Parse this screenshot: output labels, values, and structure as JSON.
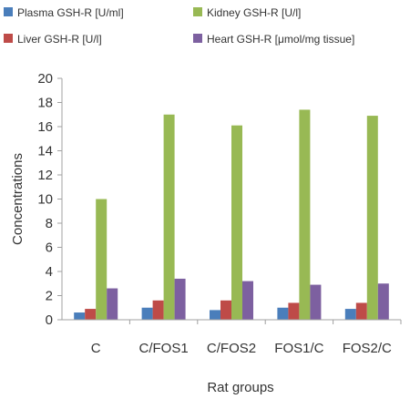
{
  "chart_data": {
    "type": "bar",
    "categories": [
      "C",
      "C/FOS1",
      "C/FOS2",
      "FOS1/C",
      "FOS2/C"
    ],
    "series": [
      {
        "name": "Plasma GSH-R [U/ml]",
        "color": "#4a7ebb",
        "values": [
          0.6,
          1.0,
          0.8,
          1.0,
          0.9
        ]
      },
      {
        "name": "Liver GSH-R [U/l]",
        "color": "#be4b48",
        "values": [
          0.9,
          1.6,
          1.6,
          1.4,
          1.4
        ]
      },
      {
        "name": "Kidney GSH-R [U/l]",
        "color": "#98b954",
        "values": [
          10.0,
          17.0,
          16.1,
          17.4,
          16.9
        ]
      },
      {
        "name": "Heart GSH-R [μmol/mg tissue]",
        "color": "#7d60a0",
        "values": [
          2.6,
          3.4,
          3.2,
          2.9,
          3.0
        ]
      }
    ],
    "xlabel": "Rat groups",
    "ylabel": "Concentrations",
    "ylim": [
      0,
      20
    ],
    "yticks": [
      0,
      2,
      4,
      6,
      8,
      10,
      12,
      14,
      16,
      18,
      20
    ],
    "grid": false,
    "legend_position": "top"
  }
}
